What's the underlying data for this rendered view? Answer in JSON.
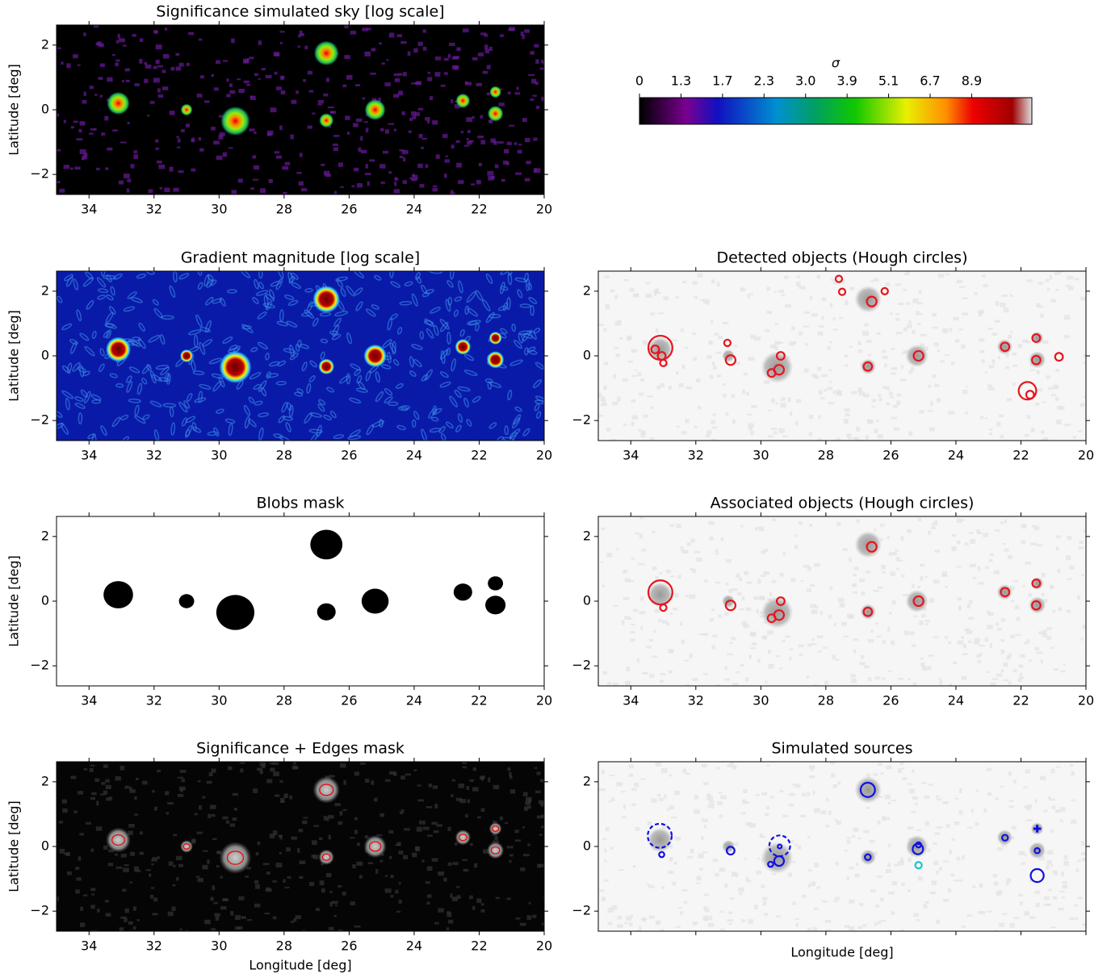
{
  "chart_data": [
    {
      "type": "image",
      "style": "sky",
      "title": "Significance simulated sky [log scale]",
      "ylabel": "Latitude [deg]",
      "xlim": [
        35,
        20
      ],
      "ylim": [
        -2.62,
        2.62
      ],
      "xticks": [
        34,
        32,
        30,
        28,
        26,
        24,
        22,
        20
      ],
      "yticks": [
        {
          "value": -2,
          "label": "−2"
        },
        0,
        2
      ]
    },
    {
      "type": "colorbar",
      "label": "σ",
      "ticks": [
        0,
        1.3,
        1.7,
        2.3,
        {
          "value": 3,
          "label": "3.0"
        },
        3.9,
        5.1,
        6.7,
        8.9
      ]
    },
    {
      "type": "image",
      "style": "gradient",
      "title": "Gradient magnitude [log scale]",
      "ylabel": "Latitude [deg]",
      "xlim": [
        35,
        20
      ],
      "ylim": [
        -2.62,
        2.62
      ],
      "xticks": [
        34,
        32,
        30,
        28,
        26,
        24,
        22,
        20
      ],
      "yticks": [
        {
          "value": -2,
          "label": "−2"
        },
        0,
        2
      ]
    },
    {
      "type": "scatter",
      "title": "Detected objects (Hough circles)",
      "xlim": [
        35,
        20
      ],
      "ylim": [
        -2.62,
        2.62
      ],
      "xticks": [
        34,
        32,
        30,
        28,
        26,
        24,
        22,
        20
      ],
      "yticks": [
        {
          "value": -2,
          "label": "−2"
        },
        0,
        2
      ],
      "series": [
        {
          "color": "#e8141c",
          "linestyle": "solid",
          "marker": "circle",
          "x": [
            33.09,
            33.25,
            33.05,
            33.0,
            31.03,
            30.93,
            29.39,
            29.67,
            29.44,
            27.6,
            27.5,
            26.59,
            26.19,
            26.71,
            25.15,
            22.49,
            21.53,
            21.53,
            20.83,
            21.8,
            21.72
          ],
          "values": [
            0.25,
            0.2,
            0.0,
            -0.22,
            0.4,
            -0.13,
            0.0,
            -0.53,
            -0.43,
            2.38,
            1.98,
            1.68,
            2.0,
            -0.33,
            0.0,
            0.28,
            0.55,
            -0.13,
            -0.03,
            -1.08,
            -1.2
          ],
          "sizes": [
            0.37,
            0.12,
            0.12,
            0.1,
            0.1,
            0.15,
            0.12,
            0.12,
            0.15,
            0.1,
            0.1,
            0.15,
            0.1,
            0.13,
            0.15,
            0.13,
            0.12,
            0.13,
            0.12,
            0.27,
            0.12
          ]
        }
      ]
    },
    {
      "type": "image",
      "style": "mask",
      "title": "Blobs mask",
      "ylabel": "Latitude [deg]",
      "xlim": [
        35,
        20
      ],
      "ylim": [
        -2.62,
        2.62
      ],
      "xticks": [
        34,
        32,
        30,
        28,
        26,
        24,
        22,
        20
      ],
      "yticks": [
        {
          "value": -2,
          "label": "−2"
        },
        0,
        2
      ]
    },
    {
      "type": "scatter",
      "title": "Associated objects (Hough circles)",
      "xlim": [
        35,
        20
      ],
      "ylim": [
        -2.62,
        2.62
      ],
      "xticks": [
        34,
        32,
        30,
        28,
        26,
        24,
        22,
        20
      ],
      "yticks": [
        {
          "value": -2,
          "label": "−2"
        },
        0,
        2
      ],
      "series": [
        {
          "color": "#e8141c",
          "linestyle": "solid",
          "marker": "circle",
          "x": [
            33.09,
            33.0,
            30.93,
            29.39,
            29.67,
            29.44,
            26.59,
            26.71,
            25.15,
            22.49,
            21.53,
            21.53
          ],
          "values": [
            0.27,
            -0.2,
            -0.13,
            0.0,
            -0.53,
            -0.43,
            1.68,
            -0.33,
            0.0,
            0.28,
            0.55,
            -0.13
          ],
          "sizes": [
            0.37,
            0.1,
            0.15,
            0.12,
            0.12,
            0.15,
            0.15,
            0.13,
            0.15,
            0.13,
            0.12,
            0.13
          ]
        }
      ]
    },
    {
      "type": "image",
      "style": "edges",
      "title": "Significance + Edges mask",
      "ylabel": "Latitude [deg]",
      "xlabel": "Longitude [deg]",
      "xlim": [
        35,
        20
      ],
      "ylim": [
        -2.62,
        2.62
      ],
      "xticks": [
        34,
        32,
        30,
        28,
        26,
        24,
        22,
        20
      ],
      "yticks": [
        {
          "value": -2,
          "label": "−2"
        },
        0,
        2
      ]
    },
    {
      "type": "scatter",
      "title": "Simulated sources",
      "xlabel": "Longitude [deg]",
      "xticklabels": false,
      "xlim": [
        35,
        20
      ],
      "ylim": [
        -2.62,
        2.62
      ],
      "xticks": [
        34,
        32,
        30,
        28,
        26,
        24,
        22,
        20
      ],
      "yticks": [
        {
          "value": -2,
          "label": "−2"
        },
        0,
        2
      ],
      "series": [
        {
          "color": "#1010e0",
          "linestyle": "dashed",
          "marker": "circle",
          "x": [
            33.11,
            29.42
          ],
          "values": [
            0.33,
            0.02
          ],
          "sizes": [
            0.37,
            0.32
          ]
        },
        {
          "color": "#1010e0",
          "linestyle": "solid",
          "marker": "circle",
          "x": [
            33.05,
            30.93,
            29.42,
            29.7,
            29.44,
            26.71,
            26.71,
            25.15,
            25.17,
            22.49,
            21.5,
            21.5
          ],
          "values": [
            -0.25,
            -0.13,
            0.0,
            -0.55,
            -0.45,
            1.75,
            -0.33,
            0.05,
            -0.08,
            0.27,
            -0.13,
            -0.9
          ],
          "sizes": [
            0.08,
            0.12,
            0.06,
            0.08,
            0.15,
            0.22,
            0.09,
            0.08,
            0.16,
            0.09,
            0.08,
            0.2
          ]
        },
        {
          "color": "#19c4c9",
          "linestyle": "solid",
          "marker": "circle",
          "x": [
            25.15
          ],
          "values": [
            -0.58
          ],
          "sizes": [
            0.1
          ]
        },
        {
          "color": "#1010e0",
          "linestyle": "solid",
          "marker": "plus",
          "x": [
            21.5
          ],
          "values": [
            0.55
          ],
          "sizes": [
            0.12
          ]
        }
      ]
    }
  ]
}
